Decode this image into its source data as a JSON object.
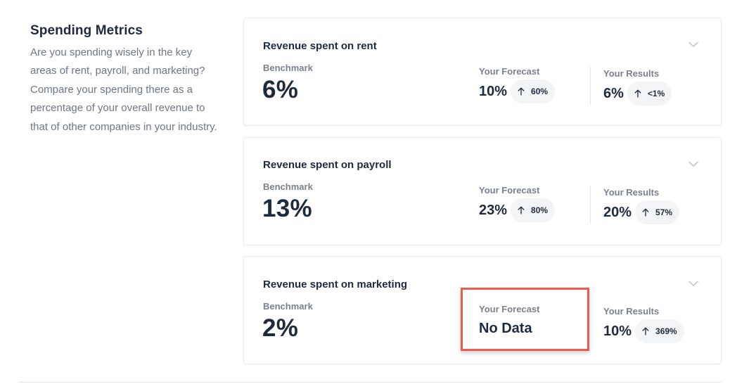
{
  "intro": {
    "title": "Spending Metrics",
    "description": "Are you spending wisely in the key areas of rent, payroll, and marketing? Compare your spending there as a percentage of your overall revenue to that of other companies in your industry."
  },
  "cards": [
    {
      "title": "Revenue spent on rent",
      "benchmark_label": "Benchmark",
      "benchmark_value": "6%",
      "forecast_label": "Your Forecast",
      "forecast_value": "10%",
      "forecast_change": "60%",
      "results_label": "Your Results",
      "results_value": "6%",
      "results_change": "<1%"
    },
    {
      "title": "Revenue spent on payroll",
      "benchmark_label": "Benchmark",
      "benchmark_value": "13%",
      "forecast_label": "Your Forecast",
      "forecast_value": "23%",
      "forecast_change": "80%",
      "results_label": "Your Results",
      "results_value": "20%",
      "results_change": "57%"
    },
    {
      "title": "Revenue spent on marketing",
      "benchmark_label": "Benchmark",
      "benchmark_value": "2%",
      "forecast_label": "Your Forecast",
      "forecast_value": "No Data",
      "results_label": "Your Results",
      "results_value": "10%",
      "results_change": "369%"
    }
  ],
  "icons": {
    "expand": "chevron-down-icon",
    "change": "arrow-up-icon"
  },
  "colors": {
    "highlight": "#ec5b4f",
    "text": "#1f2a3c",
    "muted": "#7b818c",
    "chip_bg": "#f3f4f5"
  }
}
